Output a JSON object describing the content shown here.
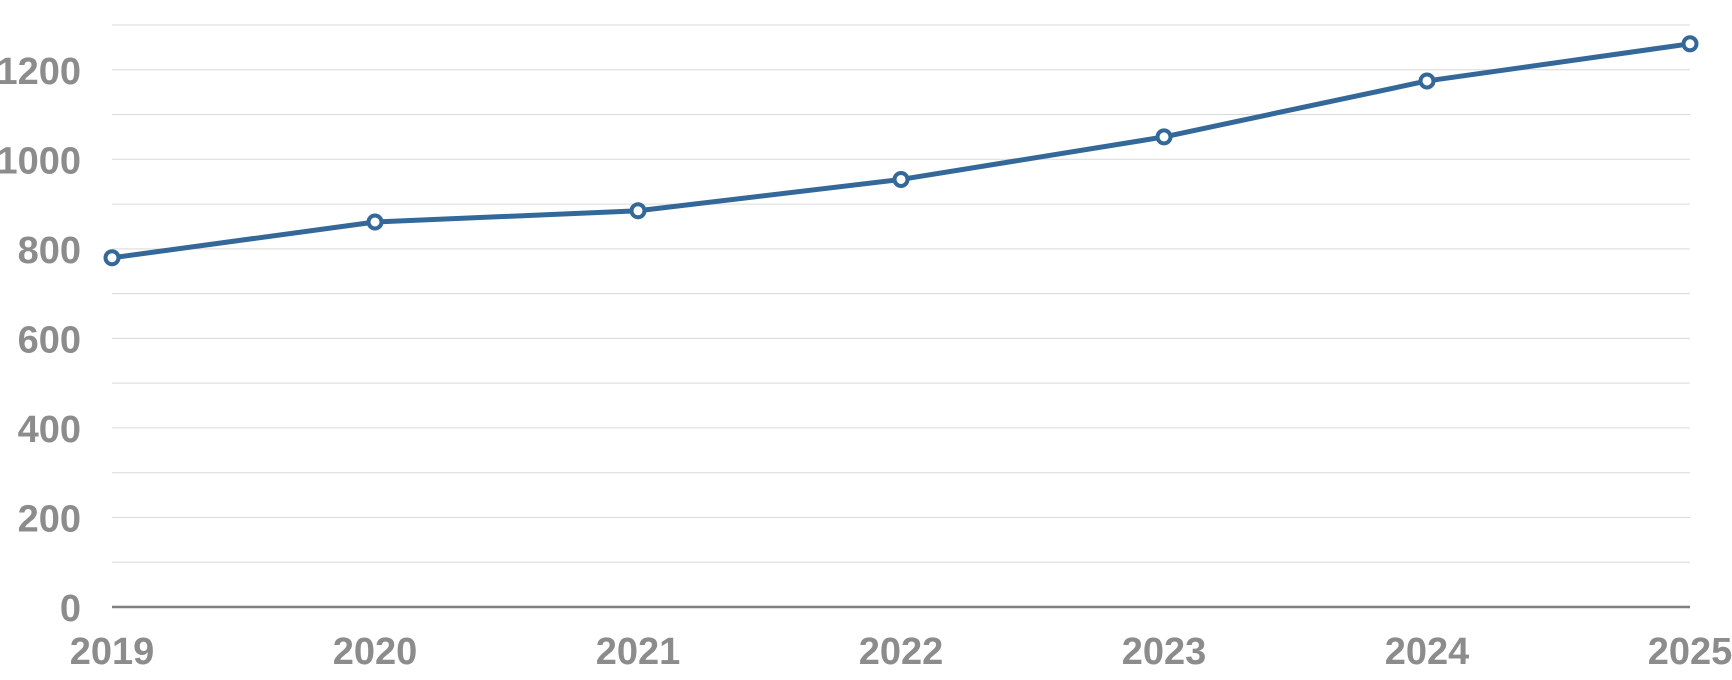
{
  "chart_data": {
    "type": "line",
    "title": "",
    "xlabel": "",
    "ylabel": "",
    "x": [
      "2019",
      "2020",
      "2021",
      "2022",
      "2023",
      "2024",
      "2025"
    ],
    "series": [
      {
        "values": [
          780,
          860,
          885,
          955,
          1050,
          1175,
          1258
        ],
        "color": "#336899"
      }
    ],
    "ylim": [
      0,
      1300
    ],
    "yticks": [
      0,
      200,
      400,
      600,
      800,
      1000,
      1200
    ],
    "minor_gridlines": [
      100,
      300,
      500,
      700,
      900,
      1100,
      1300
    ],
    "grid": true,
    "legend": "none",
    "colors": {
      "gridline": "#d9d9d9",
      "axis": "#7f7f7f",
      "tick_label": "#8c8c8c"
    }
  }
}
